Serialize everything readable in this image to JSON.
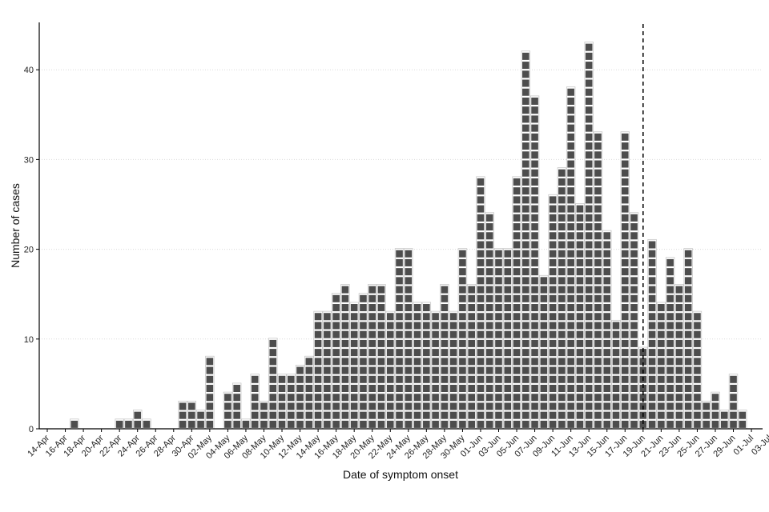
{
  "chart_data": {
    "type": "bar",
    "style": "stacked unit squares (one square per case)",
    "title": "",
    "xlabel": "Date of symptom onset",
    "ylabel": "Number of cases",
    "x_start": "2021-04-14",
    "x_end": "2021-07-03",
    "x_tick_labels": [
      "14-Apr",
      "16-Apr",
      "18-Apr",
      "20-Apr",
      "22-Apr",
      "24-Apr",
      "26-Apr",
      "28-Apr",
      "30-Apr",
      "02-May",
      "04-May",
      "06-May",
      "08-May",
      "10-May",
      "12-May",
      "14-May",
      "16-May",
      "18-May",
      "20-May",
      "22-May",
      "24-May",
      "26-May",
      "28-May",
      "30-May",
      "01-Jun",
      "03-Jun",
      "05-Jun",
      "07-Jun",
      "09-Jun",
      "11-Jun",
      "13-Jun",
      "15-Jun",
      "17-Jun",
      "19-Jun",
      "21-Jun",
      "23-Jun",
      "25-Jun",
      "27-Jun",
      "29-Jun",
      "01-Jul",
      "03-Jul"
    ],
    "y_ticks": [
      0,
      10,
      20,
      30,
      40
    ],
    "ylim": [
      0,
      45
    ],
    "grid": "horizontal dotted",
    "bar_color": "#4d4d4d",
    "vline": {
      "date": "19-Jun",
      "style": "dashed",
      "color": "#000000"
    },
    "data": [
      {
        "date": "17-Apr",
        "value": 1
      },
      {
        "date": "22-Apr",
        "value": 1
      },
      {
        "date": "23-Apr",
        "value": 1
      },
      {
        "date": "24-Apr",
        "value": 2
      },
      {
        "date": "25-Apr",
        "value": 1
      },
      {
        "date": "29-Apr",
        "value": 3
      },
      {
        "date": "30-Apr",
        "value": 3
      },
      {
        "date": "01-May",
        "value": 2
      },
      {
        "date": "02-May",
        "value": 8
      },
      {
        "date": "04-May",
        "value": 4
      },
      {
        "date": "05-May",
        "value": 5
      },
      {
        "date": "06-May",
        "value": 1
      },
      {
        "date": "07-May",
        "value": 6
      },
      {
        "date": "08-May",
        "value": 3
      },
      {
        "date": "09-May",
        "value": 10
      },
      {
        "date": "10-May",
        "value": 6
      },
      {
        "date": "11-May",
        "value": 6
      },
      {
        "date": "12-May",
        "value": 7
      },
      {
        "date": "13-May",
        "value": 8
      },
      {
        "date": "14-May",
        "value": 13
      },
      {
        "date": "15-May",
        "value": 13
      },
      {
        "date": "16-May",
        "value": 15
      },
      {
        "date": "17-May",
        "value": 16
      },
      {
        "date": "18-May",
        "value": 14
      },
      {
        "date": "19-May",
        "value": 15
      },
      {
        "date": "20-May",
        "value": 16
      },
      {
        "date": "21-May",
        "value": 16
      },
      {
        "date": "22-May",
        "value": 13
      },
      {
        "date": "23-May",
        "value": 20
      },
      {
        "date": "24-May",
        "value": 20
      },
      {
        "date": "25-May",
        "value": 14
      },
      {
        "date": "26-May",
        "value": 14
      },
      {
        "date": "27-May",
        "value": 13
      },
      {
        "date": "28-May",
        "value": 16
      },
      {
        "date": "29-May",
        "value": 13
      },
      {
        "date": "30-May",
        "value": 20
      },
      {
        "date": "31-May",
        "value": 16
      },
      {
        "date": "01-Jun",
        "value": 28
      },
      {
        "date": "02-Jun",
        "value": 24
      },
      {
        "date": "03-Jun",
        "value": 20
      },
      {
        "date": "04-Jun",
        "value": 20
      },
      {
        "date": "05-Jun",
        "value": 28
      },
      {
        "date": "06-Jun",
        "value": 42
      },
      {
        "date": "07-Jun",
        "value": 37
      },
      {
        "date": "08-Jun",
        "value": 17
      },
      {
        "date": "09-Jun",
        "value": 26
      },
      {
        "date": "10-Jun",
        "value": 29
      },
      {
        "date": "11-Jun",
        "value": 38
      },
      {
        "date": "12-Jun",
        "value": 25
      },
      {
        "date": "13-Jun",
        "value": 43
      },
      {
        "date": "14-Jun",
        "value": 33
      },
      {
        "date": "15-Jun",
        "value": 22
      },
      {
        "date": "16-Jun",
        "value": 12
      },
      {
        "date": "17-Jun",
        "value": 33
      },
      {
        "date": "18-Jun",
        "value": 24
      },
      {
        "date": "19-Jun",
        "value": 9
      },
      {
        "date": "20-Jun",
        "value": 21
      },
      {
        "date": "21-Jun",
        "value": 14
      },
      {
        "date": "22-Jun",
        "value": 19
      },
      {
        "date": "23-Jun",
        "value": 16
      },
      {
        "date": "24-Jun",
        "value": 20
      },
      {
        "date": "25-Jun",
        "value": 13
      },
      {
        "date": "26-Jun",
        "value": 3
      },
      {
        "date": "27-Jun",
        "value": 4
      },
      {
        "date": "28-Jun",
        "value": 2
      },
      {
        "date": "29-Jun",
        "value": 6
      },
      {
        "date": "30-Jun",
        "value": 2
      }
    ]
  }
}
